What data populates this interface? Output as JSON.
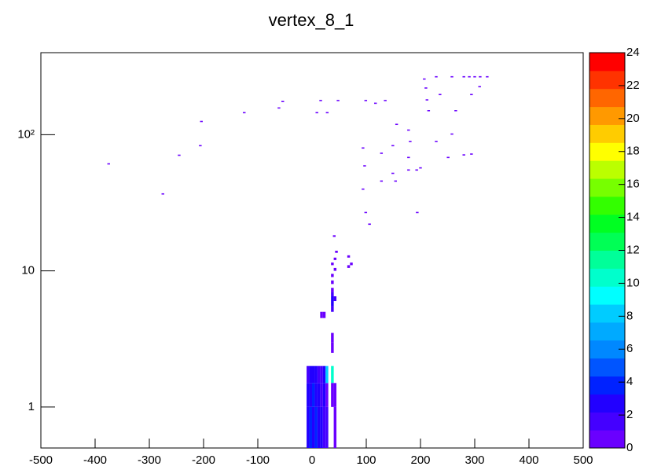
{
  "chart_data": {
    "type": "hist2d",
    "title": "vertex_8_1",
    "xlim": [
      -500,
      500
    ],
    "xticks": [
      -500,
      -400,
      -300,
      -200,
      -100,
      0,
      100,
      200,
      300,
      400,
      500
    ],
    "ylim": [
      0.5,
      400
    ],
    "ylog": true,
    "yticks": [
      1,
      10,
      {
        "value": 100,
        "label": "10²"
      }
    ],
    "zlim": [
      0,
      24
    ],
    "zticks": [
      0,
      2,
      4,
      6,
      8,
      10,
      12,
      14,
      16,
      18,
      20,
      22,
      24
    ],
    "xbin_width": 5,
    "ybin_width": 0.5,
    "colors": [
      "#6a00ff",
      "#4400ff",
      "#2200ff",
      "#0022ff",
      "#0055ff",
      "#0088ff",
      "#00aaff",
      "#00ccff",
      "#00ffff",
      "#00ffcc",
      "#00ff99",
      "#00ff55",
      "#00ff22",
      "#33ff00",
      "#77ff00",
      "#bbff00",
      "#ffff00",
      "#ffcc00",
      "#ff9900",
      "#ff6600",
      "#ff3300",
      "#ff0000"
    ],
    "x": [
      -7.5,
      -2.5,
      2.5,
      7.5,
      12.5,
      17.5,
      22.5,
      27.5,
      -7.5,
      -2.5,
      2.5,
      7.5,
      12.5,
      17.5,
      22.5,
      27.5,
      -7.5,
      -2.5,
      2.5,
      7.5,
      12.5,
      17.5,
      22.5,
      27.5,
      37.5,
      37.5,
      42.5,
      42.5,
      37.5,
      37.5,
      37.5,
      37.5,
      37.5,
      42.5,
      37.5,
      37.5,
      37.5,
      37.5,
      42.5,
      37.5,
      42.5,
      67.5,
      72.5,
      67.5,
      22.5,
      17.5,
      -375,
      -275,
      -245,
      -206,
      -204,
      -125,
      -61,
      -54,
      9,
      16,
      28,
      48,
      99,
      117,
      135,
      94,
      97,
      94,
      99,
      106,
      128,
      128,
      149,
      154,
      156,
      149,
      178,
      181,
      178,
      193,
      194,
      207,
      210,
      212,
      215,
      229,
      236,
      258,
      280,
      290,
      300,
      310,
      323,
      294,
      309,
      265,
      258,
      229,
      251,
      280,
      294,
      178,
      200,
      41,
      45
    ],
    "y": [
      0.75,
      0.75,
      0.75,
      0.75,
      0.75,
      0.75,
      0.75,
      0.75,
      1.25,
      1.25,
      1.25,
      1.25,
      1.25,
      1.25,
      1.25,
      1.25,
      1.75,
      1.75,
      1.75,
      1.75,
      1.75,
      1.75,
      1.75,
      1.75,
      1.75,
      1.25,
      0.75,
      1.25,
      2.75,
      3.25,
      5.25,
      5.75,
      6.25,
      6.25,
      6.75,
      7.25,
      8.25,
      9.25,
      10.25,
      11.25,
      12.25,
      10.75,
      11.25,
      12.75,
      4.75,
      4.75,
      61,
      36.7,
      70.6,
      83,
      125,
      145,
      157,
      175,
      145,
      178,
      145,
      178,
      178,
      170,
      178,
      79.8,
      59,
      39.8,
      26.8,
      22,
      73,
      45.6,
      52,
      45.6,
      119,
      83,
      108,
      89,
      68,
      55,
      26.8,
      256,
      220,
      180,
      150,
      266,
      197,
      266,
      266,
      266,
      266,
      266,
      266,
      197,
      225,
      150,
      101,
      89,
      68,
      71,
      72,
      55,
      57,
      18,
      13.8
    ],
    "values": [
      3,
      4,
      3,
      4,
      3,
      3,
      2,
      2,
      3,
      3,
      4,
      3,
      3,
      2,
      3,
      1,
      2,
      3,
      3,
      3,
      2,
      2,
      3,
      8,
      10,
      1,
      1,
      1,
      1,
      1,
      2,
      3,
      3,
      2,
      2,
      1,
      1,
      1,
      1,
      1,
      1,
      1,
      1,
      1,
      1,
      1,
      1,
      1,
      1,
      1,
      1,
      1,
      1,
      1,
      1,
      1,
      1,
      1,
      1,
      1,
      1,
      1,
      1,
      1,
      1,
      1,
      1,
      1,
      1,
      1,
      1,
      1,
      1,
      1,
      1,
      1,
      1,
      1,
      1,
      1,
      1,
      1,
      1,
      1,
      1,
      1,
      1,
      1,
      1,
      1,
      1,
      1,
      1,
      1,
      1,
      1,
      1,
      1,
      1,
      1,
      1
    ]
  }
}
